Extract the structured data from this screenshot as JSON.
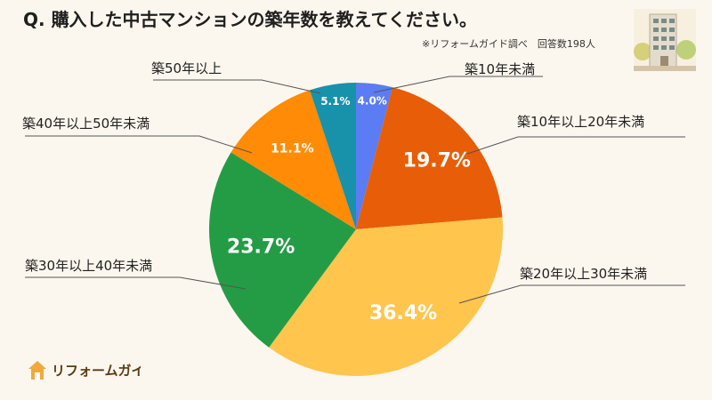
{
  "title": "Q.  購入した中古マンションの築年数を教えてください。",
  "source": "※リフォームガイド調べ　回答数198人",
  "logo_text": "リフォームガイド",
  "chart_data": {
    "type": "pie",
    "title": "Q.  購入した中古マンションの築年数を教えてください。",
    "start_angle_deg": 0,
    "direction": "clockwise",
    "slices": [
      {
        "name": "築10年未満",
        "value": 4.0,
        "label": "4.0%",
        "color": "#5b7cf2"
      },
      {
        "name": "築10年以上20年未満",
        "value": 19.7,
        "label": "19.7%",
        "color": "#e85d08"
      },
      {
        "name": "築20年以上30年未満",
        "value": 36.4,
        "label": "36.4%",
        "color": "#ffc54d"
      },
      {
        "name": "築30年以上40年未満",
        "value": 23.7,
        "label": "23.7%",
        "color": "#249c45"
      },
      {
        "name": "築40年以上50年未満",
        "value": 11.1,
        "label": "11.1%",
        "color": "#ff8b07"
      },
      {
        "name": "築50年以上",
        "value": 5.1,
        "label": "5.1%",
        "color": "#1891ab"
      }
    ]
  },
  "callouts": [
    {
      "text": "築10年未満"
    },
    {
      "text": "築10年以上20年未満"
    },
    {
      "text": "築20年以上30年未満"
    },
    {
      "text": "築30年以上40年未満"
    },
    {
      "text": "築40年以上50年未満"
    },
    {
      "text": "築50年以上"
    }
  ],
  "decorative": {
    "building_icon": "apartment-building-icon",
    "logo_icon": "house-logo-icon"
  }
}
